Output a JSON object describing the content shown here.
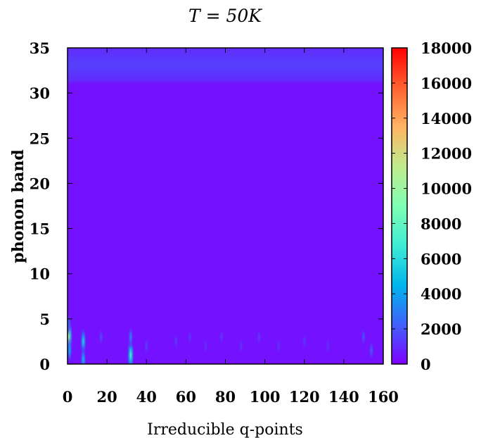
{
  "chart_data": {
    "type": "heatmap",
    "title": "T = 50K",
    "xlabel": "Irreducible q-points",
    "ylabel": "phonon band",
    "xlim": [
      0,
      160
    ],
    "ylim": [
      0,
      35
    ],
    "x_ticks": [
      "0",
      "20",
      "40",
      "60",
      "80",
      "100",
      "120",
      "140",
      "160"
    ],
    "y_ticks": [
      "0",
      "5",
      "10",
      "15",
      "20",
      "25",
      "30",
      "35"
    ],
    "colorbar": {
      "range": [
        0,
        18000
      ],
      "ticks": [
        "0",
        "2000",
        "4000",
        "6000",
        "8000",
        "10000",
        "12000",
        "14000",
        "16000",
        "18000"
      ],
      "colors": [
        "#7f00ff",
        "#3f61fa",
        "#00b5eb",
        "#40ecd4",
        "#7ffeb3",
        "#c0eb8c",
        "#ffb462",
        "#ff6130",
        "#ff0000"
      ]
    },
    "background_value": 400,
    "bands": [
      {
        "y_range": [
          31,
          35
        ],
        "value": 1000,
        "peak_y": 33,
        "peak_value": 1500
      }
    ],
    "hotspots": [
      {
        "x": 0.5,
        "y": 3,
        "value": 11000
      },
      {
        "x": 0.5,
        "y": 4.5,
        "value": 3000
      },
      {
        "x": 1,
        "y": 1.5,
        "value": 4500
      },
      {
        "x": 8,
        "y": 2.5,
        "value": 6000
      },
      {
        "x": 8,
        "y": 0.5,
        "value": 5000
      },
      {
        "x": 17,
        "y": 3,
        "value": 2000
      },
      {
        "x": 32,
        "y": 1,
        "value": 8000
      },
      {
        "x": 32,
        "y": 3,
        "value": 3500
      },
      {
        "x": 40,
        "y": 2,
        "value": 1800
      },
      {
        "x": 55,
        "y": 2.5,
        "value": 1600
      },
      {
        "x": 62,
        "y": 3,
        "value": 1500
      },
      {
        "x": 70,
        "y": 2,
        "value": 1400
      },
      {
        "x": 78,
        "y": 3,
        "value": 1500
      },
      {
        "x": 88,
        "y": 2,
        "value": 1400
      },
      {
        "x": 97,
        "y": 3,
        "value": 1600
      },
      {
        "x": 107,
        "y": 2,
        "value": 1400
      },
      {
        "x": 120,
        "y": 2.5,
        "value": 1500
      },
      {
        "x": 132,
        "y": 2,
        "value": 1400
      },
      {
        "x": 150,
        "y": 3,
        "value": 2200
      },
      {
        "x": 154,
        "y": 1.5,
        "value": 2500
      }
    ]
  }
}
